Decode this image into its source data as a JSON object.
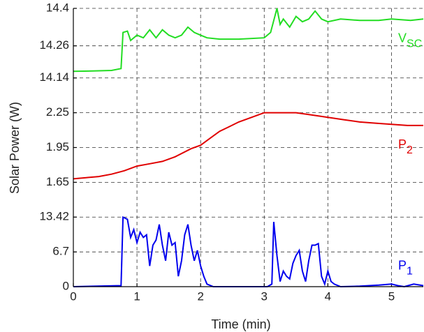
{
  "chart_data": {
    "type": "line",
    "xlabel": "Time (min)",
    "ylabel": "Solar Power (W)",
    "xlim": [
      0,
      5.5
    ],
    "xticks": [
      0,
      1,
      2,
      3,
      4,
      5
    ],
    "grid": true,
    "panels": [
      {
        "ylim": [
          0,
          13.42
        ],
        "yticks": [
          0,
          6.7,
          13.42
        ],
        "series": [
          {
            "name": "P",
            "sub": "1",
            "color": "#0000ee",
            "x": [
              0,
              0.75,
              0.78,
              0.85,
              0.9,
              0.95,
              1.0,
              1.05,
              1.1,
              1.15,
              1.2,
              1.25,
              1.3,
              1.35,
              1.4,
              1.45,
              1.5,
              1.55,
              1.6,
              1.65,
              1.7,
              1.75,
              1.8,
              1.85,
              1.9,
              1.95,
              2.0,
              2.05,
              2.1,
              2.2,
              3.05,
              3.12,
              3.15,
              3.2,
              3.25,
              3.3,
              3.35,
              3.4,
              3.45,
              3.5,
              3.55,
              3.6,
              3.65,
              3.7,
              3.75,
              3.8,
              3.85,
              3.9,
              3.95,
              4.0,
              4.05,
              4.1,
              4.2,
              4.5,
              4.8,
              5.0,
              5.1,
              5.2,
              5.35,
              5.5
            ],
            "values": [
              0,
              0.2,
              13.4,
              13.0,
              9.5,
              11.0,
              8.5,
              10.5,
              9.5,
              10.0,
              4.0,
              8.0,
              9.0,
              12.0,
              8.0,
              5.0,
              10.5,
              8.0,
              8.5,
              2.0,
              5.0,
              10.0,
              12.0,
              8.0,
              5.0,
              7.0,
              4.0,
              2.0,
              0.5,
              0,
              0,
              0.5,
              12.5,
              6.0,
              1.0,
              3.0,
              2.0,
              1.5,
              4.5,
              6.0,
              7.0,
              3.0,
              1.0,
              5.0,
              8.0,
              8.0,
              8.3,
              2.0,
              0.5,
              3.0,
              1.0,
              0.5,
              0,
              0.1,
              0.3,
              0.5,
              0.2,
              0,
              0.5,
              0.2
            ]
          }
        ]
      },
      {
        "ylim": [
          1.65,
          2.25
        ],
        "yticks": [
          1.65,
          1.95,
          2.25
        ],
        "series": [
          {
            "name": "P",
            "sub": "2",
            "color": "#e00000",
            "x": [
              0,
              0.2,
              0.4,
              0.6,
              0.8,
              1.0,
              1.2,
              1.4,
              1.6,
              1.85,
              2.0,
              2.15,
              2.3,
              2.45,
              2.6,
              2.75,
              2.9,
              3.0,
              3.2,
              3.5,
              3.75,
              4.0,
              4.25,
              4.5,
              4.75,
              5.0,
              5.25,
              5.5
            ],
            "values": [
              1.68,
              1.69,
              1.7,
              1.72,
              1.75,
              1.79,
              1.81,
              1.83,
              1.87,
              1.94,
              1.97,
              2.03,
              2.09,
              2.13,
              2.17,
              2.2,
              2.23,
              2.25,
              2.25,
              2.25,
              2.23,
              2.21,
              2.19,
              2.17,
              2.16,
              2.15,
              2.14,
              2.14
            ]
          }
        ]
      },
      {
        "ylim": [
          14.14,
          14.4
        ],
        "yticks": [
          14.14,
          14.26,
          14.4
        ],
        "series": [
          {
            "name": "V",
            "sub": "SC",
            "color": "#22dd22",
            "x": [
              0,
              0.3,
              0.6,
              0.75,
              0.78,
              0.85,
              0.9,
              1.0,
              1.1,
              1.2,
              1.3,
              1.4,
              1.5,
              1.6,
              1.7,
              1.8,
              1.9,
              2.0,
              2.1,
              2.3,
              2.6,
              3.0,
              3.1,
              3.2,
              3.25,
              3.3,
              3.4,
              3.5,
              3.6,
              3.7,
              3.8,
              3.9,
              4.0,
              4.2,
              4.5,
              4.8,
              5.0,
              5.3,
              5.5
            ],
            "values": [
              14.165,
              14.166,
              14.168,
              14.175,
              14.31,
              14.315,
              14.28,
              14.3,
              14.29,
              14.32,
              14.29,
              14.32,
              14.3,
              14.29,
              14.3,
              14.33,
              14.31,
              14.3,
              14.29,
              14.285,
              14.285,
              14.29,
              14.31,
              14.4,
              14.34,
              14.36,
              14.33,
              14.37,
              14.35,
              14.36,
              14.39,
              14.36,
              14.35,
              14.36,
              14.355,
              14.355,
              14.36,
              14.355,
              14.36
            ]
          }
        ]
      }
    ]
  }
}
